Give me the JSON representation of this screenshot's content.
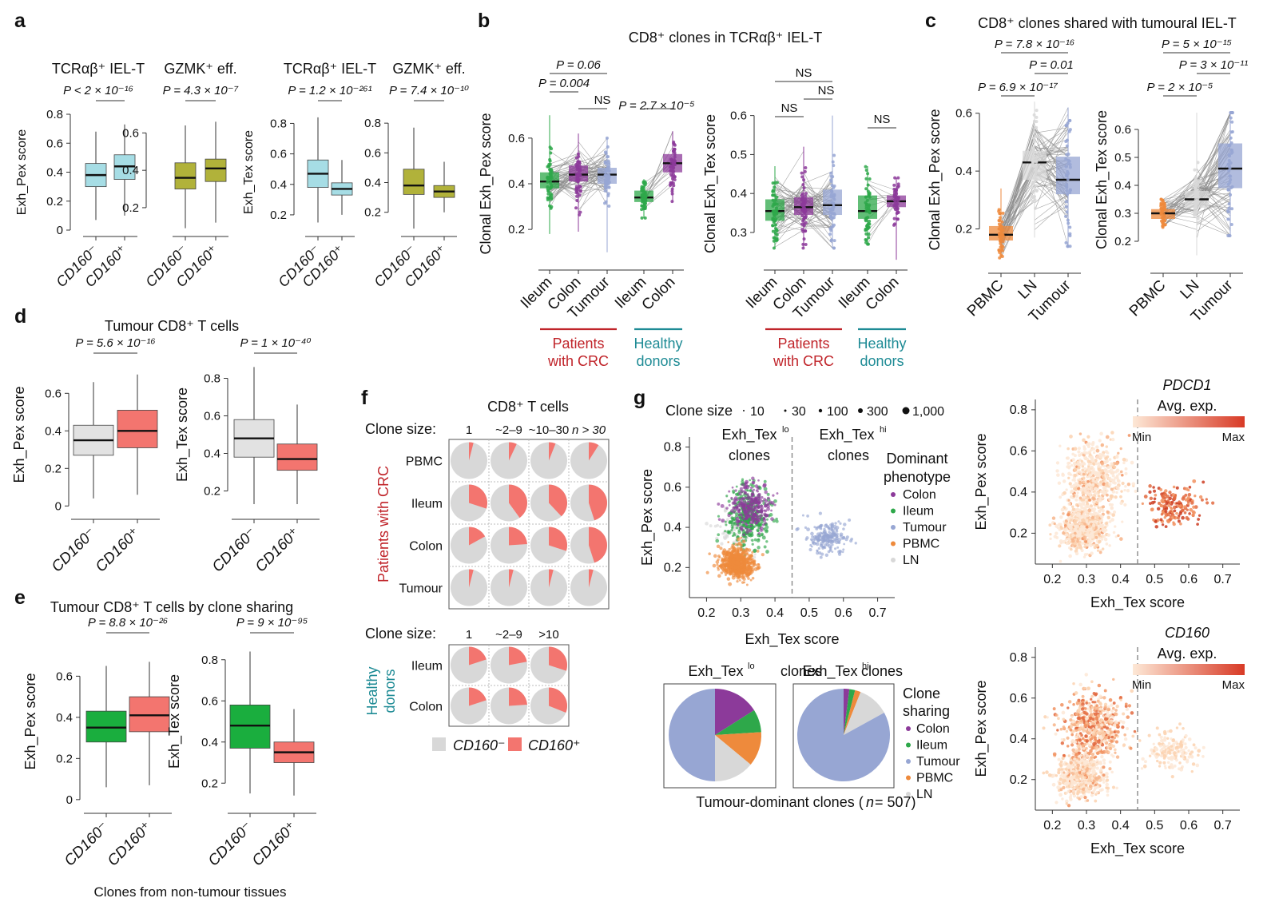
{
  "figure": {
    "panel_letters": [
      "a",
      "b",
      "c",
      "d",
      "e",
      "f",
      "g"
    ],
    "footer_text": "Clones from non-tumour tissues",
    "colors": {
      "cd160_neg_light": "#a6dde5",
      "olive": "#b1b23a",
      "grey_box": "#e2e2e2",
      "salmon": "#f3756f",
      "green": "#1aae3e",
      "colon": "#8c3a9a",
      "ileum": "#2ea84a",
      "tumour": "#97a6d3",
      "pbmc": "#ee8a3c",
      "ln": "#d8d8d8",
      "red_label": "#c0242a",
      "teal_label": "#1e8b95"
    }
  },
  "chart_data": [
    {
      "id": "a1",
      "type": "box",
      "title": "TCRαβ⁺ IEL-T",
      "p_text": "P < 2 × 10⁻¹⁶",
      "ylabel": "Exh_Pex score",
      "ylim": [
        0,
        0.8
      ],
      "yticks": [
        0,
        0.2,
        0.4,
        0.6,
        0.8
      ],
      "categories": [
        "CD160⁻",
        "CD160⁺"
      ],
      "color": "#a6dde5",
      "boxes": [
        {
          "q1": 0.3,
          "median": 0.38,
          "q3": 0.46,
          "low": 0.07,
          "high": 0.68
        },
        {
          "q1": 0.35,
          "median": 0.44,
          "q3": 0.52,
          "low": 0.1,
          "high": 0.73
        }
      ]
    },
    {
      "id": "a2",
      "type": "box",
      "title": "GZMK⁺ eff.",
      "p_text": "P = 4.3 × 10⁻⁷",
      "ylabel": "",
      "ylim": [
        0.08,
        0.7
      ],
      "yticks": [
        0.2,
        0.4,
        0.6
      ],
      "categories": [
        "CD160⁻",
        "CD160⁺"
      ],
      "color": "#b1b23a",
      "boxes": [
        {
          "q1": 0.3,
          "median": 0.36,
          "q3": 0.44,
          "low": 0.09,
          "high": 0.64
        },
        {
          "q1": 0.34,
          "median": 0.41,
          "q3": 0.46,
          "low": 0.12,
          "high": 0.66
        }
      ]
    },
    {
      "id": "a3",
      "type": "box",
      "title": "TCRαβ⁺ IEL-T",
      "p_text": "P = 1.2 × 10⁻²⁶¹",
      "ylabel": "Exh_Tex score",
      "ylim": [
        0.1,
        0.86
      ],
      "yticks": [
        0.2,
        0.4,
        0.6,
        0.8
      ],
      "categories": [
        "CD160⁻",
        "CD160⁺"
      ],
      "color": "#a6dde5",
      "boxes": [
        {
          "q1": 0.38,
          "median": 0.47,
          "q3": 0.56,
          "low": 0.15,
          "high": 0.84
        },
        {
          "q1": 0.33,
          "median": 0.37,
          "q3": 0.41,
          "low": 0.2,
          "high": 0.56
        }
      ]
    },
    {
      "id": "a4",
      "type": "box",
      "title": "GZMK⁺ eff.",
      "p_text": "P = 7.4 × 10⁻¹⁰",
      "ylabel": "",
      "ylim": [
        0.08,
        0.86
      ],
      "yticks": [
        0.2,
        0.4,
        0.6,
        0.8
      ],
      "categories": [
        "CD160⁻",
        "CD160⁺"
      ],
      "color": "#b1b23a",
      "boxes": [
        {
          "q1": 0.32,
          "median": 0.38,
          "q3": 0.49,
          "low": 0.09,
          "high": 0.77
        },
        {
          "q1": 0.3,
          "median": 0.34,
          "q3": 0.38,
          "low": 0.2,
          "high": 0.54
        }
      ]
    },
    {
      "id": "b1",
      "type": "box",
      "title": "CD8⁺ clones in TCRαβ⁺ IEL-T",
      "ylabel": "Clonal Exh_Pex score",
      "ylim": [
        0.05,
        0.75
      ],
      "yticks": [
        0.2,
        0.4,
        0.6
      ],
      "categories": [
        "Ileum",
        "Colon",
        "Tumour",
        "Ileum",
        "Colon"
      ],
      "group_labels": [
        {
          "text": "Patients\nwith CRC",
          "color": "#c0242a"
        },
        {
          "text": "Healthy\ndonors",
          "color": "#1e8b95"
        }
      ],
      "colors": [
        "#2ea84a",
        "#8c3a9a",
        "#97a6d3",
        "#2ea84a",
        "#8c3a9a"
      ],
      "boxes": [
        {
          "q1": 0.38,
          "median": 0.41,
          "q3": 0.45,
          "low": 0.18,
          "high": 0.7
        },
        {
          "q1": 0.41,
          "median": 0.44,
          "q3": 0.48,
          "low": 0.19,
          "high": 0.62
        },
        {
          "q1": 0.4,
          "median": 0.44,
          "q3": 0.47,
          "low": 0.1,
          "high": 0.6
        },
        {
          "q1": 0.32,
          "median": 0.34,
          "q3": 0.37,
          "low": 0.25,
          "high": 0.42
        },
        {
          "q1": 0.45,
          "median": 0.49,
          "q3": 0.53,
          "low": 0.32,
          "high": 0.63
        }
      ],
      "p_labels": [
        "P = 0.06",
        "P = 0.004",
        "NS",
        "P = 2.7 × 10⁻⁵"
      ]
    },
    {
      "id": "b2",
      "type": "box",
      "ylabel": "Clonal Exh_Tex score",
      "ylim": [
        0.22,
        0.63
      ],
      "yticks": [
        0.3,
        0.4,
        0.5,
        0.6
      ],
      "categories": [
        "Ileum",
        "Colon",
        "Tumour",
        "Ileum",
        "Colon"
      ],
      "group_labels": [
        {
          "text": "Patients\nwith CRC",
          "color": "#c0242a"
        },
        {
          "text": "Healthy\ndonors",
          "color": "#1e8b95"
        }
      ],
      "colors": [
        "#2ea84a",
        "#8c3a9a",
        "#97a6d3",
        "#2ea84a",
        "#8c3a9a"
      ],
      "boxes": [
        {
          "q1": 0.33,
          "median": 0.355,
          "q3": 0.385,
          "low": 0.26,
          "high": 0.47
        },
        {
          "q1": 0.345,
          "median": 0.365,
          "q3": 0.39,
          "low": 0.26,
          "high": 0.52
        },
        {
          "q1": 0.345,
          "median": 0.37,
          "q3": 0.41,
          "low": 0.26,
          "high": 0.6
        },
        {
          "q1": 0.335,
          "median": 0.355,
          "q3": 0.395,
          "low": 0.27,
          "high": 0.47
        },
        {
          "q1": 0.365,
          "median": 0.38,
          "q3": 0.395,
          "low": 0.23,
          "high": 0.44
        }
      ],
      "p_labels": [
        "NS",
        "NS",
        "NS",
        "NS"
      ]
    },
    {
      "id": "c1",
      "type": "box",
      "title": "CD8⁺ clones shared with tumoural IEL-T",
      "ylabel": "Clonal Exh_Pex score",
      "ylim": [
        0.08,
        0.66
      ],
      "yticks": [
        0.2,
        0.4,
        0.6
      ],
      "categories": [
        "PBMC",
        "LN",
        "Tumour"
      ],
      "colors": [
        "#ee8a3c",
        "#d8d8d8",
        "#97a6d3"
      ],
      "boxes": [
        {
          "q1": 0.16,
          "median": 0.18,
          "q3": 0.21,
          "low": 0.1,
          "high": 0.34
        },
        {
          "q1": 0.37,
          "median": 0.43,
          "q3": 0.47,
          "low": 0.17,
          "high": 0.64
        },
        {
          "q1": 0.32,
          "median": 0.37,
          "q3": 0.45,
          "low": 0.14,
          "high": 0.62
        }
      ],
      "p_labels": [
        "P = 7.8 × 10⁻¹⁶",
        "P = 0.01",
        "P = 6.9 × 10⁻¹⁷"
      ]
    },
    {
      "id": "c2",
      "type": "box",
      "ylabel": "Clonal Exh_Tex score",
      "ylim": [
        0.12,
        0.72
      ],
      "yticks": [
        0.2,
        0.3,
        0.4,
        0.5,
        0.6
      ],
      "categories": [
        "PBMC",
        "LN",
        "Tumour"
      ],
      "colors": [
        "#ee8a3c",
        "#d8d8d8",
        "#97a6d3"
      ],
      "boxes": [
        {
          "q1": 0.28,
          "median": 0.3,
          "q3": 0.315,
          "low": 0.25,
          "high": 0.35
        },
        {
          "q1": 0.32,
          "median": 0.35,
          "q3": 0.38,
          "low": 0.15,
          "high": 0.66
        },
        {
          "q1": 0.39,
          "median": 0.46,
          "q3": 0.55,
          "low": 0.22,
          "high": 0.66
        }
      ],
      "p_labels": [
        "P = 5 × 10⁻¹⁵",
        "P = 3 × 10⁻¹¹",
        "P = 2 × 10⁻⁵"
      ]
    },
    {
      "id": "d1",
      "type": "box",
      "title": "Tumour CD8⁺ T cells",
      "p_text": "P = 5.6 × 10⁻¹⁶",
      "ylabel": "Exh_Pex score",
      "ylim": [
        -0.02,
        0.78
      ],
      "yticks": [
        0,
        0.2,
        0.4,
        0.6
      ],
      "categories": [
        "CD160⁻",
        "CD160⁺"
      ],
      "colors": [
        "#e2e2e2",
        "#f3756f"
      ],
      "boxes": [
        {
          "q1": 0.27,
          "median": 0.35,
          "q3": 0.43,
          "low": 0.04,
          "high": 0.66
        },
        {
          "q1": 0.31,
          "median": 0.4,
          "q3": 0.51,
          "low": 0.06,
          "high": 0.7
        }
      ]
    },
    {
      "id": "d2",
      "type": "box",
      "p_text": "P = 1 × 10⁻⁴⁰",
      "ylabel": "Exh_Tex score",
      "ylim": [
        0.1,
        0.9
      ],
      "yticks": [
        0.2,
        0.4,
        0.6,
        0.8
      ],
      "categories": [
        "CD160⁻",
        "CD160⁺"
      ],
      "colors": [
        "#e2e2e2",
        "#f3756f"
      ],
      "boxes": [
        {
          "q1": 0.38,
          "median": 0.48,
          "q3": 0.58,
          "low": 0.13,
          "high": 0.86
        },
        {
          "q1": 0.31,
          "median": 0.37,
          "q3": 0.45,
          "low": 0.13,
          "high": 0.66
        }
      ]
    },
    {
      "id": "e1",
      "type": "box",
      "title": "Tumour CD8⁺ T cells by clone sharing",
      "p_text": "P = 8.8 × 10⁻²⁶",
      "ylabel": "Exh_Pex score",
      "ylim": [
        -0.02,
        0.78
      ],
      "yticks": [
        0,
        0.2,
        0.4,
        0.6
      ],
      "categories": [
        "CD160⁻",
        "CD160⁺"
      ],
      "colors": [
        "#1aae3e",
        "#f3756f"
      ],
      "boxes": [
        {
          "q1": 0.28,
          "median": 0.35,
          "q3": 0.43,
          "low": 0.06,
          "high": 0.65
        },
        {
          "q1": 0.33,
          "median": 0.41,
          "q3": 0.5,
          "low": 0.07,
          "high": 0.67
        }
      ]
    },
    {
      "id": "e2",
      "type": "box",
      "p_text": "P = 9 × 10⁻⁹⁵",
      "ylabel": "Exh_Tex score",
      "ylim": [
        0.1,
        0.9
      ],
      "yticks": [
        0.2,
        0.4,
        0.6,
        0.8
      ],
      "categories": [
        "CD160⁻",
        "CD160⁺"
      ],
      "colors": [
        "#1aae3e",
        "#f3756f"
      ],
      "boxes": [
        {
          "q1": 0.37,
          "median": 0.48,
          "q3": 0.58,
          "low": 0.15,
          "high": 0.84
        },
        {
          "q1": 0.3,
          "median": 0.35,
          "q3": 0.4,
          "low": 0.14,
          "high": 0.56
        }
      ]
    },
    {
      "id": "f",
      "type": "pie",
      "title": "CD8⁺ T cells",
      "legend": [
        "CD160⁻",
        "CD160⁺"
      ],
      "groups": [
        {
          "label": "Patients with CRC",
          "color": "#c0242a",
          "size_label": "Clone size:",
          "sizes": [
            "1",
            "~2–9",
            "~10–30",
            "n > 30"
          ],
          "rows": [
            {
              "tissue": "PBMC",
              "cd160_pos_fraction": [
                0.04,
                0.07,
                0.06,
                0.09
              ]
            },
            {
              "tissue": "Ileum",
              "cd160_pos_fraction": [
                0.3,
                0.4,
                0.38,
                0.45
              ]
            },
            {
              "tissue": "Colon",
              "cd160_pos_fraction": [
                0.17,
                0.24,
                0.3,
                0.45
              ]
            },
            {
              "tissue": "Tumour",
              "cd160_pos_fraction": [
                0.04,
                0.04,
                0.04,
                0.04
              ]
            }
          ]
        },
        {
          "label": "Healthy donors",
          "color": "#1e8b95",
          "size_label": "Clone size:",
          "sizes": [
            "1",
            "~2–9",
            ">10"
          ],
          "rows": [
            {
              "tissue": "Ileum",
              "cd160_pos_fraction": [
                0.2,
                0.22,
                0.3
              ]
            },
            {
              "tissue": "Colon",
              "cd160_pos_fraction": [
                0.2,
                0.24,
                0.31
              ]
            }
          ]
        }
      ]
    },
    {
      "id": "g1",
      "type": "scatter",
      "xlabel": "Exh_Tex score",
      "ylabel": "Exh_Pex score",
      "xlim": [
        0.15,
        0.75
      ],
      "ylim": [
        0.05,
        0.85
      ],
      "xticks": [
        0.2,
        0.3,
        0.4,
        0.5,
        0.6,
        0.7
      ],
      "yticks": [
        0.2,
        0.4,
        0.6,
        0.8
      ],
      "threshold_x": 0.45,
      "region_labels": [
        "Exh_Tex^lo clones",
        "Exh_Tex^hi clones"
      ],
      "clone_size_label": "Clone size",
      "clone_sizes": [
        "10",
        "30",
        "100",
        "300",
        "1,000"
      ],
      "legend_title": "Dominant phenotype",
      "legend": [
        "Colon",
        "Ileum",
        "Tumour",
        "PBMC",
        "LN"
      ],
      "clusters": [
        {
          "phenotype": "PBMC",
          "center": [
            0.29,
            0.22
          ],
          "spread": [
            0.04,
            0.06
          ],
          "n": 650
        },
        {
          "phenotype": "Ileum",
          "center": [
            0.32,
            0.46
          ],
          "spread": [
            0.05,
            0.12
          ],
          "n": 380
        },
        {
          "phenotype": "Colon",
          "center": [
            0.33,
            0.5
          ],
          "spread": [
            0.05,
            0.1
          ],
          "n": 260
        },
        {
          "phenotype": "Tumour",
          "center": [
            0.55,
            0.35
          ],
          "spread": [
            0.05,
            0.06
          ],
          "n": 190
        },
        {
          "phenotype": "LN",
          "center": [
            0.3,
            0.4
          ],
          "spread": [
            0.06,
            0.1
          ],
          "n": 120
        }
      ]
    },
    {
      "id": "g_pies",
      "type": "pie",
      "labels": [
        "Exh_Tex^lo clones",
        "Exh_Tex^hi clones"
      ],
      "caption": "Tumour-dominant clones (n = 507)",
      "legend_title": "Clone sharing",
      "legend": [
        "Colon",
        "Ileum",
        "Tumour",
        "PBMC",
        "LN"
      ],
      "pies": [
        {
          "name": "Exh_Tex^lo clones",
          "values": [
            0.16,
            0.08,
            0.5,
            0.12,
            0.14
          ]
        },
        {
          "name": "Exh_Tex^hi clones",
          "values": [
            0.02,
            0.02,
            0.83,
            0.02,
            0.11
          ]
        }
      ]
    },
    {
      "id": "g2",
      "type": "scatter",
      "title": "PDCD1",
      "legend_title": "Avg. exp.",
      "legend_min": "Min",
      "legend_max": "Max",
      "xlabel": "Exh_Tex score",
      "ylabel": "Exh_Pex score",
      "xlim": [
        0.15,
        0.75
      ],
      "ylim": [
        0.05,
        0.85
      ],
      "xticks": [
        0.2,
        0.3,
        0.4,
        0.5,
        0.6,
        0.7
      ],
      "yticks": [
        0.2,
        0.4,
        0.6,
        0.8
      ],
      "threshold_x": 0.45
    },
    {
      "id": "g3",
      "type": "scatter",
      "title": "CD160",
      "legend_title": "Avg. exp.",
      "legend_min": "Min",
      "legend_max": "Max",
      "xlabel": "Exh_Tex score",
      "ylabel": "Exh_Pex score",
      "xlim": [
        0.15,
        0.75
      ],
      "ylim": [
        0.05,
        0.85
      ],
      "xticks": [
        0.2,
        0.3,
        0.4,
        0.5,
        0.6,
        0.7
      ],
      "yticks": [
        0.2,
        0.4,
        0.6,
        0.8
      ],
      "threshold_x": 0.45
    }
  ]
}
